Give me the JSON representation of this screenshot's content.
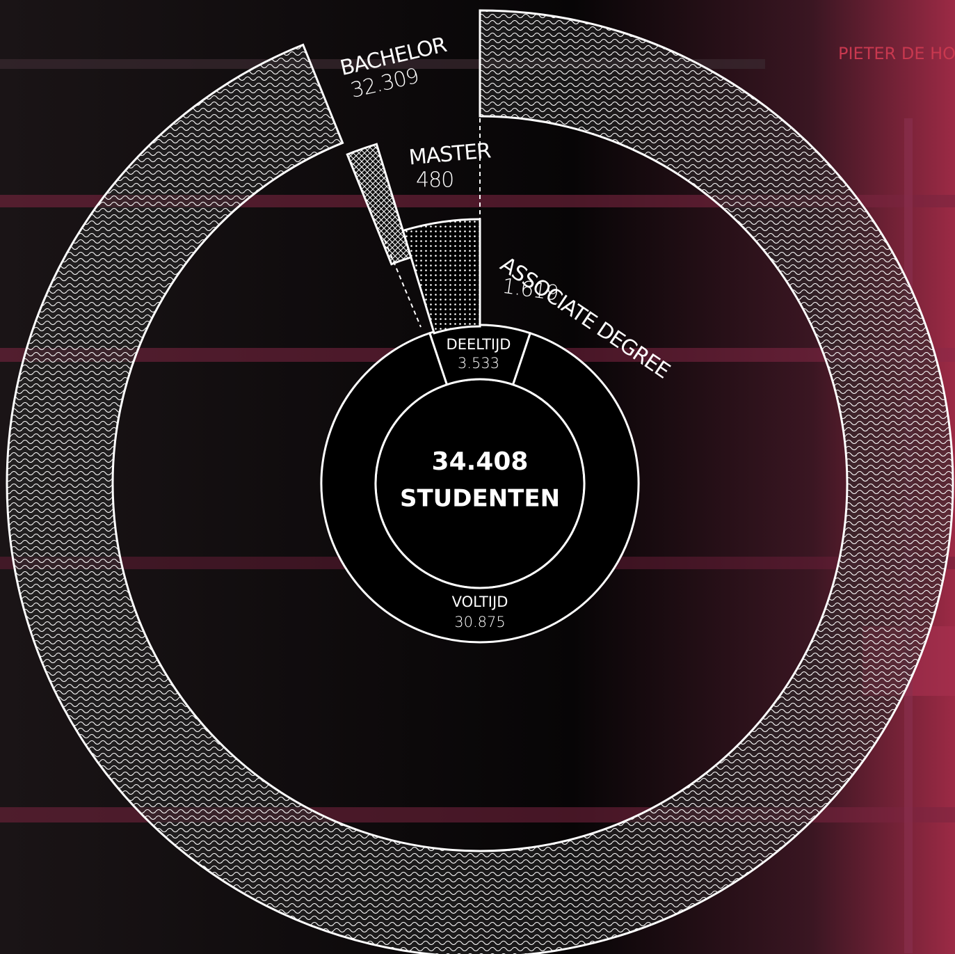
{
  "credit": "PIETER DE HO",
  "chart_data": {
    "type": "donut",
    "center_value": 34408,
    "center_value_label": "34.408",
    "center_label": "STUDENTEN",
    "rings": [
      {
        "categories": [
          "DEELTIJD",
          "VOLTIJD"
        ],
        "values": [
          3533,
          30875
        ],
        "value_labels": [
          "3.533",
          "30.875"
        ]
      },
      {
        "categories": [
          "BACHELOR",
          "MASTER",
          "ASSOCIATE DEGREE"
        ],
        "values": [
          32309,
          480,
          1619
        ],
        "value_labels": [
          "32.309",
          "480",
          "1.619"
        ]
      }
    ]
  }
}
